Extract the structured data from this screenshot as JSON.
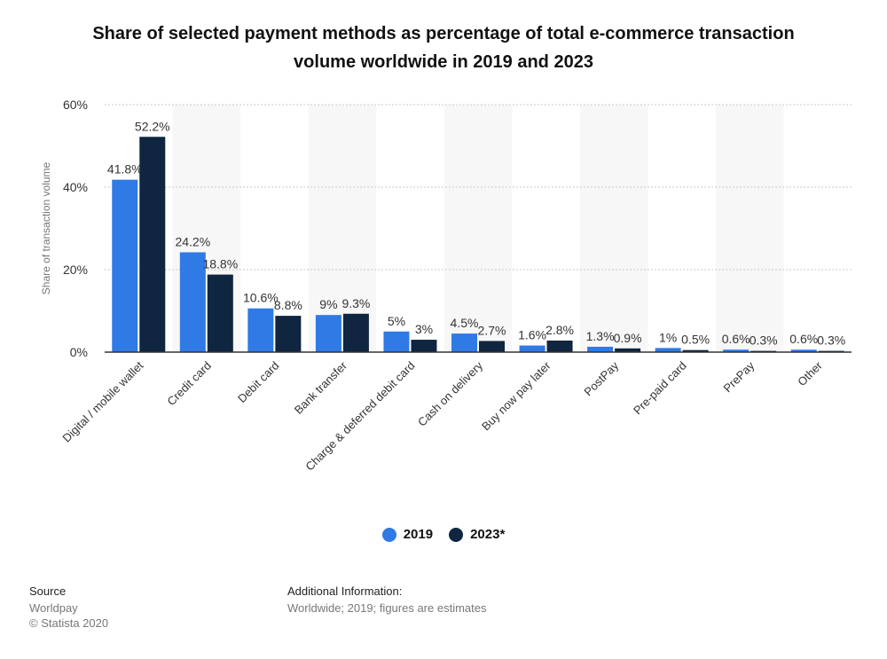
{
  "title": {
    "line1": "Share of selected payment methods as percentage of total e-commerce transaction",
    "line2": "volume worldwide in 2019 and 2023"
  },
  "colors": {
    "s2019": "#2f7ae5",
    "s2023": "#0f2540",
    "band": "#f7f7f7",
    "grid": "#c8c8c8"
  },
  "chart_data": {
    "type": "bar",
    "ylabel": "Share of transaction volume",
    "ylim": [
      0,
      60
    ],
    "yticks": [
      0,
      20,
      40,
      60
    ],
    "ytick_labels": [
      "0%",
      "20%",
      "40%",
      "60%"
    ],
    "grid": true,
    "legend_position": "bottom",
    "categories": [
      "Digital / mobile wallet",
      "Credit card",
      "Debit card",
      "Bank transfer",
      "Charge & deferred debit card",
      "Cash on delivery",
      "Buy now pay later",
      "PostPay",
      "Pre-paid card",
      "PrePay",
      "Other"
    ],
    "series": [
      {
        "name": "2019",
        "values": [
          41.8,
          24.2,
          10.6,
          9,
          5,
          4.5,
          1.6,
          1.3,
          1,
          0.6,
          0.6
        ],
        "labels": [
          "41.8%",
          "24.2%",
          "10.6%",
          "9%",
          "5%",
          "4.5%",
          "1.6%",
          "1.3%",
          "1%",
          "0.6%",
          "0.6%"
        ]
      },
      {
        "name": "2023*",
        "values": [
          52.2,
          18.8,
          8.8,
          9.3,
          3,
          2.7,
          2.8,
          0.9,
          0.5,
          0.3,
          0.3
        ],
        "labels": [
          "52.2%",
          "18.8%",
          "8.8%",
          "9.3%",
          "3%",
          "2.7%",
          "2.8%",
          "0.9%",
          "0.5%",
          "0.3%",
          "0.3%"
        ]
      }
    ]
  },
  "legend": [
    {
      "label": "2019",
      "color": "#2f7ae5"
    },
    {
      "label": "2023*",
      "color": "#0f2540"
    }
  ],
  "source": {
    "heading": "Source",
    "name": "Worldpay",
    "copyright": "© Statista 2020"
  },
  "additional": {
    "heading": "Additional Information:",
    "text": "Worldwide; 2019; figures are estimates"
  }
}
